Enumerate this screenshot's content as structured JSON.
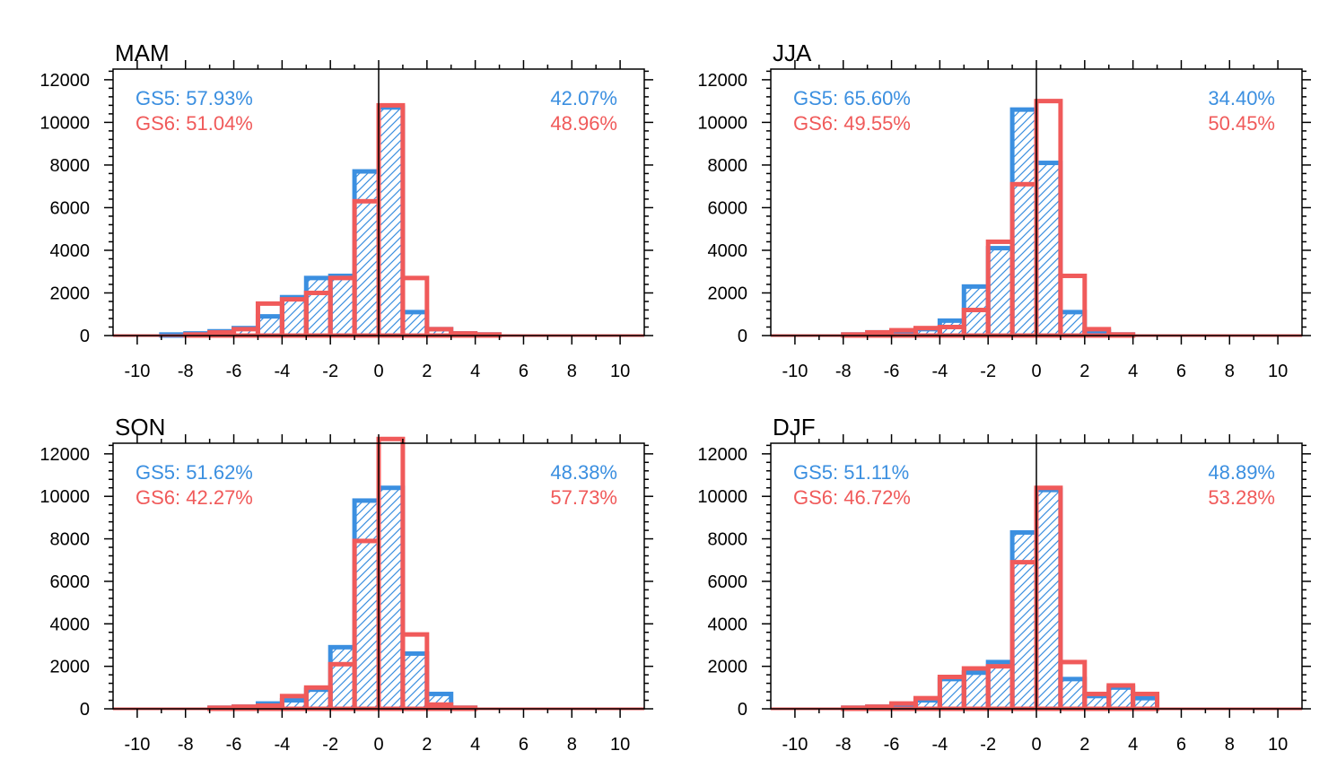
{
  "figure": {
    "colors": {
      "gs5": "#3b8fe0",
      "gs6": "#f05a5a",
      "axis": "#000000"
    }
  },
  "chart_data": [
    {
      "type": "bar",
      "title": "MAM",
      "xlim": [
        -11,
        11
      ],
      "ylim": [
        0,
        12500
      ],
      "xticks": [
        -10,
        -8,
        -6,
        -4,
        -2,
        0,
        2,
        4,
        6,
        8,
        10
      ],
      "xtick_labels": [
        "-10",
        "-8",
        "-6",
        "-4",
        "-2",
        "0",
        "2",
        "4",
        "6",
        "8",
        "10"
      ],
      "yticks": [
        0,
        2000,
        4000,
        6000,
        8000,
        10000,
        12000
      ],
      "ytick_labels": [
        "0",
        "2000",
        "4000",
        "6000",
        "8000",
        "10000",
        "12000"
      ],
      "bin_edges": [
        -11,
        -10,
        -9,
        -8,
        -7,
        -6,
        -5,
        -4,
        -3,
        -2,
        -1,
        0,
        1,
        2,
        3,
        4,
        5,
        6,
        7,
        8,
        9,
        10,
        11
      ],
      "series": [
        {
          "name": "GS5",
          "values": [
            0,
            0,
            50,
            100,
            200,
            350,
            900,
            1800,
            2700,
            2800,
            7700,
            10700,
            1100,
            300,
            100,
            50,
            0,
            0,
            0,
            0,
            0,
            0
          ]
        },
        {
          "name": "GS6",
          "values": [
            0,
            0,
            0,
            50,
            150,
            300,
            1500,
            1700,
            2000,
            2700,
            6300,
            10800,
            2700,
            300,
            100,
            50,
            0,
            0,
            0,
            0,
            0,
            0
          ]
        }
      ],
      "annotations": {
        "left_gs5": "GS5: 57.93%",
        "left_gs6": "GS6: 51.04%",
        "right_gs5": "42.07%",
        "right_gs6": "48.96%"
      }
    },
    {
      "type": "bar",
      "title": "JJA",
      "xlim": [
        -11,
        11
      ],
      "ylim": [
        0,
        12500
      ],
      "xticks": [
        -10,
        -8,
        -6,
        -4,
        -2,
        0,
        2,
        4,
        6,
        8,
        10
      ],
      "xtick_labels": [
        "-10",
        "-8",
        "-6",
        "-4",
        "-2",
        "0",
        "2",
        "4",
        "6",
        "8",
        "10"
      ],
      "yticks": [
        0,
        2000,
        4000,
        6000,
        8000,
        10000,
        12000
      ],
      "ytick_labels": [
        "0",
        "2000",
        "4000",
        "6000",
        "8000",
        "10000",
        "12000"
      ],
      "bin_edges": [
        -11,
        -10,
        -9,
        -8,
        -7,
        -6,
        -5,
        -4,
        -3,
        -2,
        -1,
        0,
        1,
        2,
        3,
        4,
        5,
        6,
        7,
        8,
        9,
        10,
        11
      ],
      "series": [
        {
          "name": "GS5",
          "values": [
            0,
            0,
            0,
            50,
            150,
            200,
            300,
            700,
            2300,
            4100,
            10600,
            8100,
            1100,
            200,
            50,
            0,
            0,
            0,
            0,
            0,
            0,
            0
          ]
        },
        {
          "name": "GS6",
          "values": [
            0,
            0,
            0,
            50,
            150,
            250,
            350,
            400,
            1200,
            4400,
            7100,
            11000,
            2800,
            300,
            50,
            0,
            0,
            0,
            0,
            0,
            0,
            0
          ]
        }
      ],
      "annotations": {
        "left_gs5": "GS5: 65.60%",
        "left_gs6": "GS6: 49.55%",
        "right_gs5": "34.40%",
        "right_gs6": "50.45%"
      }
    },
    {
      "type": "bar",
      "title": "SON",
      "xlim": [
        -11,
        11
      ],
      "ylim": [
        0,
        12500
      ],
      "xticks": [
        -10,
        -8,
        -6,
        -4,
        -2,
        0,
        2,
        4,
        6,
        8,
        10
      ],
      "xtick_labels": [
        "-10",
        "-8",
        "-6",
        "-4",
        "-2",
        "0",
        "2",
        "4",
        "6",
        "8",
        "10"
      ],
      "yticks": [
        0,
        2000,
        4000,
        6000,
        8000,
        10000,
        12000
      ],
      "ytick_labels": [
        "0",
        "2000",
        "4000",
        "6000",
        "8000",
        "10000",
        "12000"
      ],
      "bin_edges": [
        -11,
        -10,
        -9,
        -8,
        -7,
        -6,
        -5,
        -4,
        -3,
        -2,
        -1,
        0,
        1,
        2,
        3,
        4,
        5,
        6,
        7,
        8,
        9,
        10,
        11
      ],
      "series": [
        {
          "name": "GS5",
          "values": [
            0,
            0,
            0,
            0,
            50,
            100,
            250,
            400,
            900,
            2900,
            9800,
            10400,
            2600,
            700,
            50,
            0,
            0,
            0,
            0,
            0,
            0,
            0
          ]
        },
        {
          "name": "GS6",
          "values": [
            0,
            0,
            0,
            0,
            50,
            100,
            150,
            600,
            1000,
            2100,
            7900,
            12700,
            3500,
            200,
            50,
            0,
            0,
            0,
            0,
            0,
            0,
            0
          ]
        }
      ],
      "annotations": {
        "left_gs5": "GS5: 51.62%",
        "left_gs6": "GS6: 42.27%",
        "right_gs5": "48.38%",
        "right_gs6": "57.73%"
      }
    },
    {
      "type": "bar",
      "title": "DJF",
      "xlim": [
        -11,
        11
      ],
      "ylim": [
        0,
        12500
      ],
      "xticks": [
        -10,
        -8,
        -6,
        -4,
        -2,
        0,
        2,
        4,
        6,
        8,
        10
      ],
      "xtick_labels": [
        "-10",
        "-8",
        "-6",
        "-4",
        "-2",
        "0",
        "2",
        "4",
        "6",
        "8",
        "10"
      ],
      "yticks": [
        0,
        2000,
        4000,
        6000,
        8000,
        10000,
        12000
      ],
      "ytick_labels": [
        "0",
        "2000",
        "4000",
        "6000",
        "8000",
        "10000",
        "12000"
      ],
      "bin_edges": [
        -11,
        -10,
        -9,
        -8,
        -7,
        -6,
        -5,
        -4,
        -3,
        -2,
        -1,
        0,
        1,
        2,
        3,
        4,
        5,
        6,
        7,
        8,
        9,
        10,
        11
      ],
      "series": [
        {
          "name": "GS5",
          "values": [
            0,
            0,
            0,
            50,
            100,
            200,
            400,
            1400,
            1700,
            2200,
            8300,
            10300,
            1400,
            600,
            1000,
            500,
            0,
            0,
            0,
            0,
            0,
            0
          ]
        },
        {
          "name": "GS6",
          "values": [
            0,
            0,
            0,
            50,
            100,
            250,
            500,
            1500,
            1900,
            2000,
            6900,
            10400,
            2200,
            700,
            1100,
            700,
            0,
            0,
            0,
            0,
            0,
            0
          ]
        }
      ],
      "annotations": {
        "left_gs5": "GS5: 51.11%",
        "left_gs6": "GS6: 46.72%",
        "right_gs5": "48.89%",
        "right_gs6": "53.28%"
      }
    }
  ]
}
